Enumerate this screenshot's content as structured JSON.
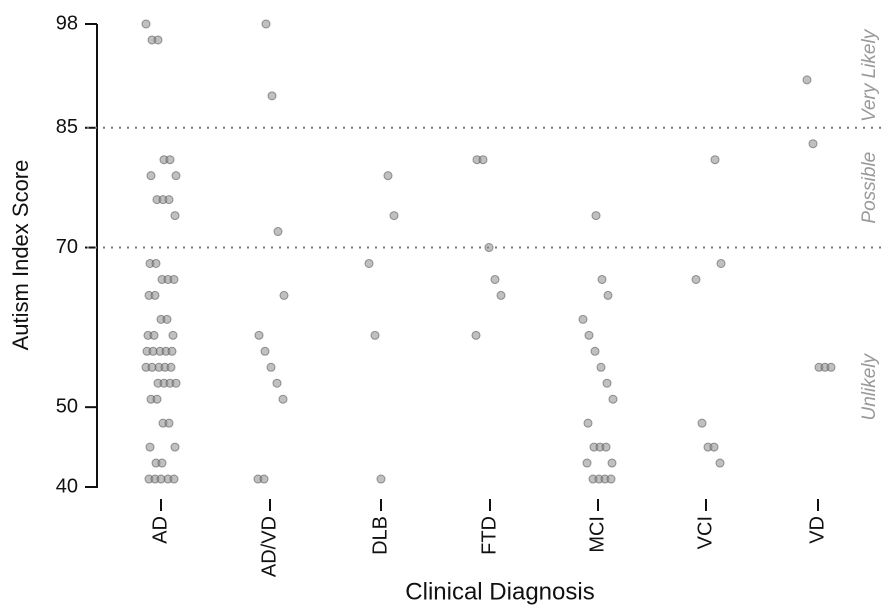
{
  "chart_data": {
    "type": "strip",
    "x_label": "Clinical Diagnosis",
    "y_label": "Autism Index Score",
    "categories": [
      "AD",
      "AD/VD",
      "DLB",
      "FTD",
      "MCI",
      "VCI",
      "VD"
    ],
    "values": [
      [
        98,
        96,
        96,
        81,
        81,
        79,
        79,
        76,
        76,
        76,
        74,
        68,
        68,
        66,
        66,
        66,
        64,
        64,
        61,
        61,
        59,
        59,
        59,
        57,
        57,
        57,
        57,
        57,
        55,
        55,
        55,
        55,
        55,
        53,
        53,
        53,
        53,
        51,
        51,
        48,
        48,
        45,
        45,
        43,
        43,
        41,
        41,
        41,
        41,
        41
      ],
      [
        98,
        89,
        72,
        64,
        59,
        57,
        55,
        53,
        51,
        41,
        41
      ],
      [
        79,
        74,
        68,
        59,
        41
      ],
      [
        81,
        81,
        70,
        66,
        64,
        59
      ],
      [
        74,
        66,
        64,
        61,
        59,
        57,
        55,
        53,
        51,
        48,
        45,
        45,
        45,
        43,
        43,
        41,
        41,
        41,
        41
      ],
      [
        81,
        68,
        66,
        48,
        45,
        45,
        43
      ],
      [
        91,
        83,
        55,
        55,
        55
      ]
    ],
    "color": "#8c8c8c",
    "ylim": [
      40,
      98
    ],
    "yticks": [
      40,
      50,
      70,
      85,
      98
    ],
    "reference_lines": [
      85,
      70
    ],
    "regions": [
      "Very Likely",
      "Possible",
      "Unlikely"
    ]
  }
}
